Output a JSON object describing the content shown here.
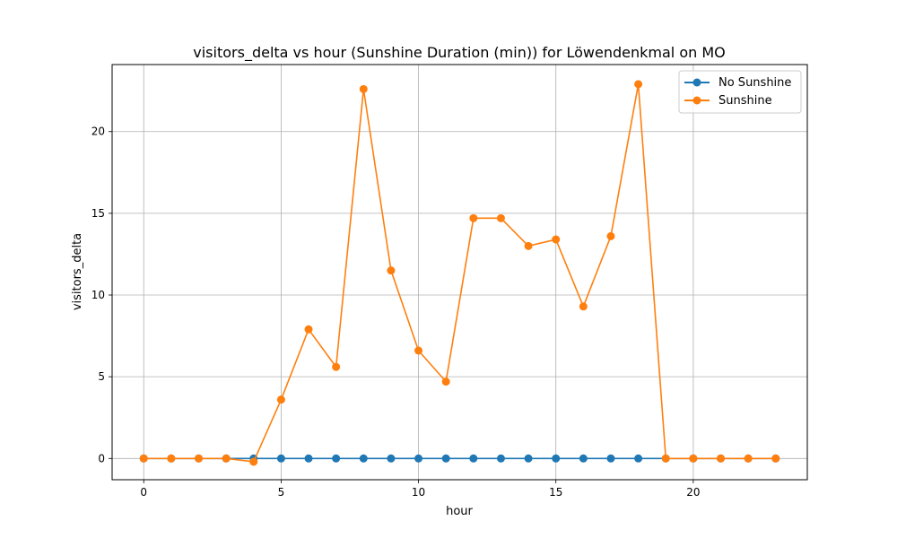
{
  "chart_data": {
    "type": "line",
    "title": "visitors_delta vs hour (Sunshine Duration (min)) for Löwendenkmal on MO",
    "xlabel": "hour",
    "ylabel": "visitors_delta",
    "xlim": [
      -1.15,
      24.15
    ],
    "ylim": [
      -1.3,
      24.1
    ],
    "xticks": [
      0,
      5,
      10,
      15,
      20
    ],
    "yticks": [
      0,
      5,
      10,
      15,
      20
    ],
    "grid": true,
    "legend_position": "top-right",
    "x": [
      0,
      1,
      2,
      3,
      4,
      5,
      6,
      7,
      8,
      9,
      10,
      11,
      12,
      13,
      14,
      15,
      16,
      17,
      18,
      19,
      20,
      21,
      22,
      23
    ],
    "series": [
      {
        "name": "No Sunshine",
        "color": "#1f77b4",
        "values": [
          0,
          0,
          0,
          0,
          0,
          0,
          0,
          0,
          0,
          0,
          0,
          0,
          0,
          0,
          0,
          0,
          0,
          0,
          0,
          0,
          0,
          0,
          0,
          0
        ]
      },
      {
        "name": "Sunshine",
        "color": "#ff7f0e",
        "values": [
          0,
          0,
          0,
          0,
          -0.2,
          3.6,
          7.9,
          5.6,
          22.6,
          11.5,
          6.6,
          4.7,
          14.7,
          14.7,
          13.0,
          13.4,
          9.3,
          13.6,
          22.9,
          0,
          0,
          0,
          0,
          0
        ]
      }
    ]
  }
}
